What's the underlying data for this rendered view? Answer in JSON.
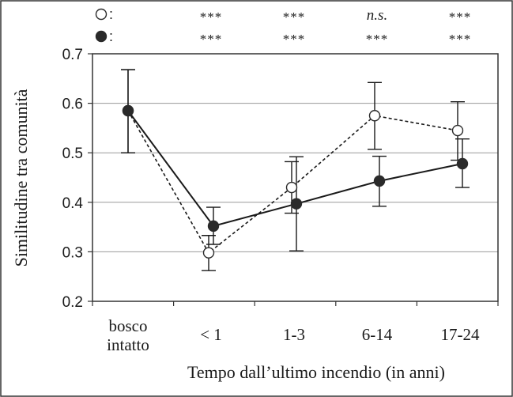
{
  "chart_data": {
    "type": "line",
    "xlabel": "Tempo dall’ultimo incendio (in anni)",
    "ylabel": "Similitudine tra comunità",
    "categories": [
      [
        "bosco",
        "intatto"
      ],
      [
        "< 1"
      ],
      [
        "1-3"
      ],
      [
        "6-14"
      ],
      [
        "17-24"
      ]
    ],
    "ylim": [
      0.2,
      0.7
    ],
    "yticks": [
      "0.2",
      "0.3",
      "0.4",
      "0.5",
      "0.6",
      "0.7"
    ],
    "grid": true,
    "series": [
      {
        "marker": "open-circle",
        "line_style": "dashed",
        "color": "#1a1a1a",
        "values": [
          0.585,
          0.298,
          0.43,
          0.575,
          0.545
        ],
        "err_low": [
          0.5,
          0.262,
          0.378,
          0.507,
          0.485
        ],
        "err_high": [
          0.668,
          0.333,
          0.482,
          0.642,
          0.603
        ]
      },
      {
        "marker": "filled-circle",
        "line_style": "solid",
        "color": "#1a1a1a",
        "values": [
          0.585,
          0.352,
          0.397,
          0.443,
          0.478
        ],
        "err_low": [
          0.5,
          0.315,
          0.302,
          0.392,
          0.43
        ],
        "err_high": [
          0.668,
          0.39,
          0.492,
          0.493,
          0.528
        ]
      }
    ],
    "significance": {
      "rows": [
        {
          "symbol_marker": "open-circle",
          "label": ":",
          "marks": [
            "",
            "***",
            "***",
            "n.s.",
            "***"
          ]
        },
        {
          "symbol_marker": "filled-circle",
          "label": ":",
          "marks": [
            "",
            "***",
            "***",
            "***",
            "***"
          ]
        }
      ]
    }
  }
}
